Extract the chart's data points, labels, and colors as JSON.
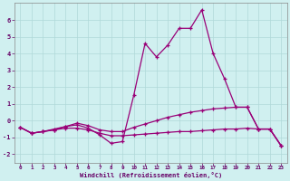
{
  "xlabel": "Windchill (Refroidissement éolien,°C)",
  "background_color": "#d0f0f0",
  "grid_color": "#b0d8d8",
  "line_color": "#990077",
  "spine_color": "#888888",
  "x_ticks": [
    0,
    1,
    2,
    3,
    4,
    5,
    6,
    7,
    8,
    9,
    10,
    11,
    12,
    13,
    14,
    15,
    16,
    17,
    18,
    19,
    20,
    21,
    22,
    23
  ],
  "y_ticks": [
    -2,
    -1,
    0,
    1,
    2,
    3,
    4,
    5,
    6
  ],
  "xlim": [
    -0.5,
    23.5
  ],
  "ylim": [
    -2.5,
    7.0
  ],
  "series1_x": [
    0,
    1,
    2,
    3,
    4,
    5,
    6,
    7,
    8,
    9,
    10,
    11,
    12,
    13,
    14,
    15,
    16,
    17,
    18,
    19,
    20,
    21,
    22,
    23
  ],
  "series1_y": [
    -0.4,
    -0.75,
    -0.65,
    -0.55,
    -0.35,
    -0.25,
    -0.45,
    -0.85,
    -1.35,
    -1.25,
    1.5,
    4.6,
    3.8,
    4.5,
    5.5,
    5.5,
    6.6,
    4.0,
    2.5,
    0.8,
    0.8,
    -0.5,
    -0.5,
    -1.5
  ],
  "series2_x": [
    0,
    1,
    2,
    3,
    4,
    5,
    6,
    7,
    8,
    9,
    10,
    11,
    12,
    13,
    14,
    15,
    16,
    17,
    18,
    19,
    20,
    21,
    22,
    23
  ],
  "series2_y": [
    -0.4,
    -0.75,
    -0.65,
    -0.5,
    -0.35,
    -0.15,
    -0.3,
    -0.55,
    -0.65,
    -0.65,
    -0.4,
    -0.2,
    0.0,
    0.2,
    0.35,
    0.5,
    0.6,
    0.7,
    0.75,
    0.8,
    0.8,
    -0.5,
    -0.5,
    -1.5
  ],
  "series3_x": [
    0,
    1,
    2,
    3,
    4,
    5,
    6,
    7,
    8,
    9,
    10,
    11,
    12,
    13,
    14,
    15,
    16,
    17,
    18,
    19,
    20,
    21,
    22,
    23
  ],
  "series3_y": [
    -0.4,
    -0.75,
    -0.65,
    -0.55,
    -0.45,
    -0.45,
    -0.55,
    -0.75,
    -0.9,
    -0.9,
    -0.85,
    -0.8,
    -0.75,
    -0.7,
    -0.65,
    -0.65,
    -0.6,
    -0.55,
    -0.5,
    -0.5,
    -0.45,
    -0.5,
    -0.5,
    -1.5
  ]
}
